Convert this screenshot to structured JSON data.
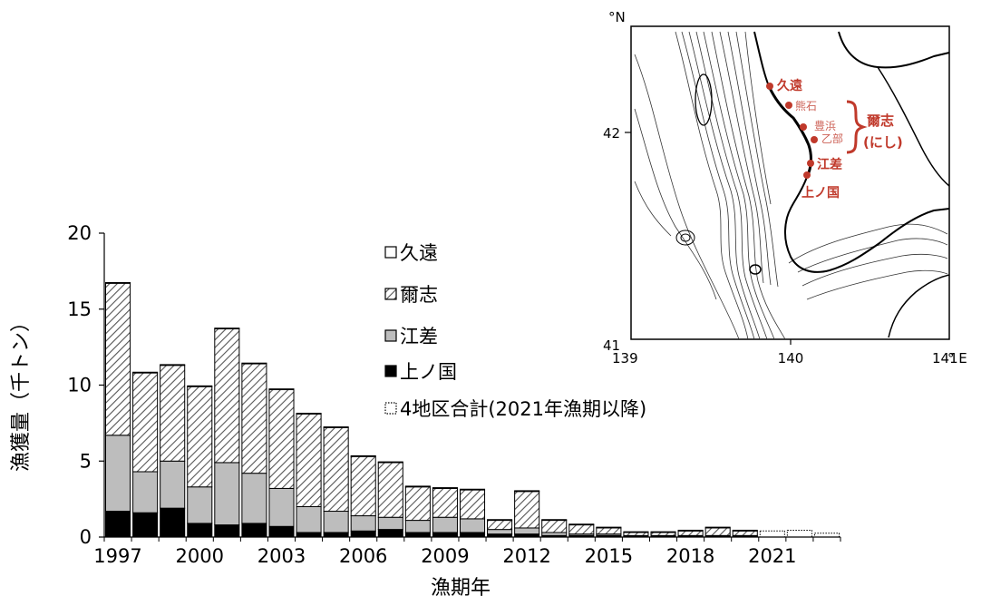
{
  "chart_data": {
    "type": "bar",
    "stacked": true,
    "xlabel": "漁期年",
    "ylabel": "漁獲量（千トン）",
    "ylim": [
      0,
      20
    ],
    "y_ticks": [
      0,
      5,
      10,
      15,
      20
    ],
    "x_tick_labels": [
      "1997",
      "2000",
      "2003",
      "2006",
      "2009",
      "2012",
      "2015",
      "2018",
      "2021"
    ],
    "categories": [
      "1997",
      "1998",
      "1999",
      "2000",
      "2001",
      "2002",
      "2003",
      "2004",
      "2005",
      "2006",
      "2007",
      "2008",
      "2009",
      "2010",
      "2011",
      "2012",
      "2013",
      "2014",
      "2015",
      "2016",
      "2017",
      "2018",
      "2019",
      "2020",
      "2021",
      "2022",
      "2023"
    ],
    "legend_position": "right",
    "series": [
      {
        "name": "上ノ国",
        "pattern": "solid-black",
        "values": [
          1.7,
          1.6,
          1.9,
          0.9,
          0.8,
          0.9,
          0.7,
          0.3,
          0.3,
          0.4,
          0.5,
          0.3,
          0.3,
          0.3,
          0.2,
          0.2,
          0.1,
          0.1,
          0.1,
          0.05,
          0.05,
          0.05,
          0.05,
          0.05,
          0,
          0,
          0
        ]
      },
      {
        "name": "江差",
        "pattern": "solid-gray",
        "values": [
          5.0,
          2.7,
          3.1,
          2.4,
          4.1,
          3.3,
          2.5,
          1.7,
          1.4,
          1.0,
          0.8,
          0.8,
          1.0,
          0.9,
          0.3,
          0.4,
          0.2,
          0.1,
          0.1,
          0.05,
          0.05,
          0.05,
          0.05,
          0.05,
          0,
          0,
          0
        ]
      },
      {
        "name": "爾志",
        "pattern": "hatched",
        "values": [
          10.0,
          6.5,
          6.3,
          6.6,
          8.8,
          7.2,
          6.5,
          6.1,
          5.5,
          3.9,
          3.6,
          2.2,
          1.9,
          1.9,
          0.6,
          2.4,
          0.8,
          0.6,
          0.4,
          0.2,
          0.2,
          0.3,
          0.5,
          0.3,
          0,
          0,
          0
        ]
      },
      {
        "name": "久遠",
        "pattern": "white",
        "values": [
          0.05,
          0.05,
          0.05,
          0.05,
          0.05,
          0.05,
          0.05,
          0.05,
          0.05,
          0.05,
          0.05,
          0.05,
          0.05,
          0.05,
          0.05,
          0.05,
          0.05,
          0.05,
          0.05,
          0.05,
          0.05,
          0.05,
          0.05,
          0.05,
          0,
          0,
          0
        ]
      },
      {
        "name": "4地区合計(2021年漁期以降)",
        "pattern": "white-dotted",
        "values": [
          0,
          0,
          0,
          0,
          0,
          0,
          0,
          0,
          0,
          0,
          0,
          0,
          0,
          0,
          0,
          0,
          0,
          0,
          0,
          0,
          0,
          0,
          0,
          0,
          0.4,
          0.45,
          0.25
        ]
      }
    ]
  },
  "map": {
    "lat_unit": "°N",
    "lon_unit": "° E",
    "lat_ticks": [
      "42",
      "41"
    ],
    "lon_ticks": [
      "139",
      "140",
      "141"
    ],
    "places": {
      "kudo": "久遠",
      "kumaishi": "熊石",
      "toyohama": "豊浜",
      "otobe": "乙部",
      "esashi": "江差",
      "kaminokuni": "上ノ国",
      "nishi": "爾志",
      "nishi_reading": "(にし)"
    },
    "accent_color": "#c0392b"
  }
}
